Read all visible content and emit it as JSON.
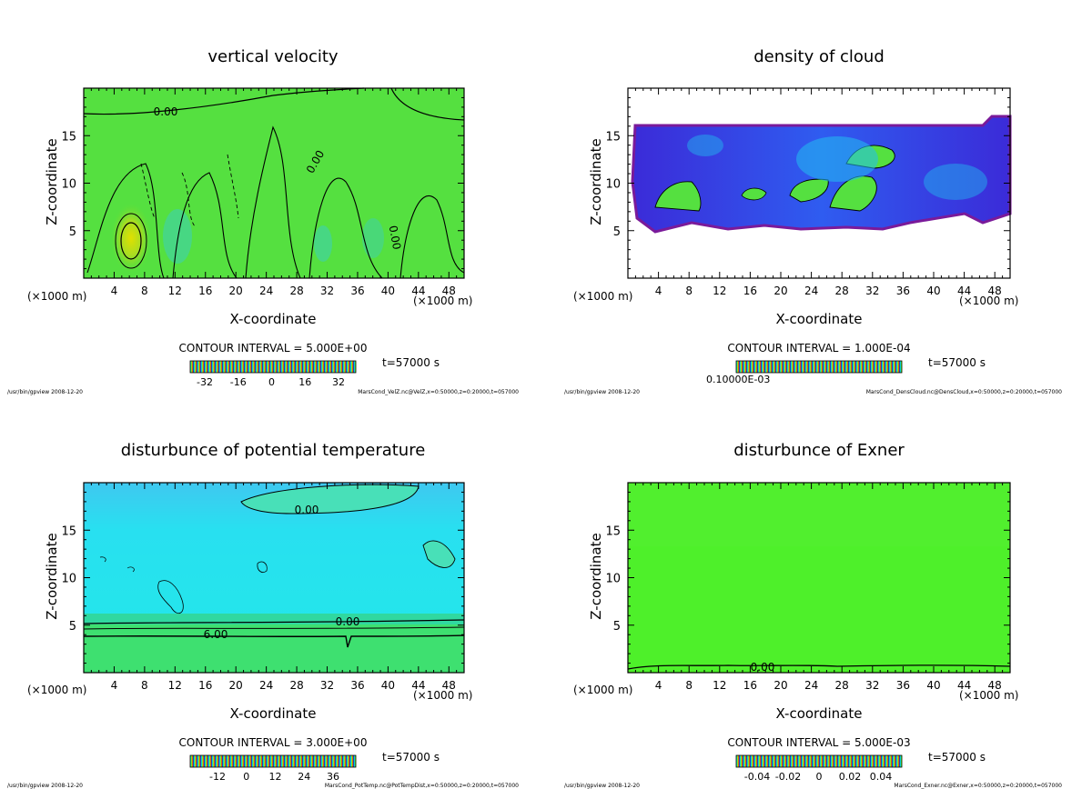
{
  "panels": [
    {
      "title": "vertical velocity",
      "xlabel": "X-coordinate",
      "ylabel": "Z-coordinate",
      "x_unit_left": "(×1000 m)",
      "x_unit_right": "(×1000 m)",
      "contour_text": "CONTOUR INTERVAL = 5.000E+00",
      "time_text": "t=57000 s",
      "footer_left": "/usr/bin/gpview  2008-12-20",
      "footer_right": "MarsCond_VelZ.nc@VelZ,x=0:50000,z=0:20000,t=057000",
      "colorbar_ticks": [
        "-32",
        "-16",
        "0",
        "16",
        "32"
      ],
      "contour_labels": [
        "0.00",
        "0.00",
        "0.00"
      ]
    },
    {
      "title": "density of cloud",
      "xlabel": "X-coordinate",
      "ylabel": "Z-coordinate",
      "x_unit_left": "(×1000 m)",
      "x_unit_right": "(×1000 m)",
      "contour_text": "CONTOUR INTERVAL = 1.000E-04",
      "time_text": "t=57000 s",
      "footer_left": "/usr/bin/gpview  2008-12-20",
      "footer_right": "MarsCond_DensCloud.nc@DensCloud,x=0:50000,z=0:20000,t=057000",
      "colorbar_ticks": [
        "0.10000E-03"
      ],
      "contour_labels": []
    },
    {
      "title": "disturbunce of potential temperature",
      "xlabel": "X-coordinate",
      "ylabel": "Z-coordinate",
      "x_unit_left": "(×1000 m)",
      "x_unit_right": "(×1000 m)",
      "contour_text": "CONTOUR INTERVAL = 3.000E+00",
      "time_text": "t=57000 s",
      "footer_left": "/usr/bin/gpview  2008-12-20",
      "footer_right": "MarsCond_PotTemp.nc@PotTempDist,x=0:50000,z=0:20000,t=057000",
      "colorbar_ticks": [
        "-12",
        "0",
        "12",
        "24",
        "36"
      ],
      "contour_labels": [
        "0.00",
        "0.00",
        "6.00"
      ]
    },
    {
      "title": "disturbunce of Exner",
      "xlabel": "X-coordinate",
      "ylabel": "Z-coordinate",
      "x_unit_left": "(×1000 m)",
      "x_unit_right": "(×1000 m)",
      "contour_text": "CONTOUR INTERVAL = 5.000E-03",
      "time_text": "t=57000 s",
      "footer_left": "/usr/bin/gpview  2008-12-20",
      "footer_right": "MarsCond_Exner.nc@Exner,x=0:50000,z=0:20000,t=057000",
      "colorbar_ticks": [
        "-0.04",
        "-0.02",
        "0",
        "0.02",
        "0.04"
      ],
      "contour_labels": [
        "0.00"
      ]
    }
  ],
  "chart_data": [
    {
      "type": "heatmap",
      "title": "vertical velocity",
      "xlabel": "X-coordinate",
      "ylabel": "Z-coordinate",
      "xlim": [
        0,
        50
      ],
      "ylim": [
        0,
        20
      ],
      "xticks": [
        4,
        8,
        12,
        16,
        20,
        24,
        28,
        32,
        36,
        40,
        44,
        48
      ],
      "yticks": [
        5,
        10,
        15
      ],
      "colorbar": [
        -32,
        -16,
        0,
        16,
        32
      ],
      "contour_interval": 5.0
    },
    {
      "type": "heatmap",
      "title": "density of cloud",
      "xlabel": "X-coordinate",
      "ylabel": "Z-coordinate",
      "xlim": [
        0,
        50
      ],
      "ylim": [
        0,
        20
      ],
      "xticks": [
        4,
        8,
        12,
        16,
        20,
        24,
        28,
        32,
        36,
        40,
        44,
        48
      ],
      "yticks": [
        5,
        10,
        15
      ],
      "contour_interval": 0.0001
    },
    {
      "type": "heatmap",
      "title": "disturbunce of potential temperature",
      "xlabel": "X-coordinate",
      "ylabel": "Z-coordinate",
      "xlim": [
        0,
        50
      ],
      "ylim": [
        0,
        20
      ],
      "xticks": [
        4,
        8,
        12,
        16,
        20,
        24,
        28,
        32,
        36,
        40,
        44,
        48
      ],
      "yticks": [
        5,
        10,
        15
      ],
      "colorbar": [
        -12,
        0,
        12,
        24,
        36
      ],
      "contour_interval": 3.0
    },
    {
      "type": "heatmap",
      "title": "disturbunce of Exner",
      "xlabel": "X-coordinate",
      "ylabel": "Z-coordinate",
      "xlim": [
        0,
        50
      ],
      "ylim": [
        0,
        20
      ],
      "xticks": [
        4,
        8,
        12,
        16,
        20,
        24,
        28,
        32,
        36,
        40,
        44,
        48
      ],
      "yticks": [
        5,
        10,
        15
      ],
      "colorbar": [
        -0.04,
        -0.02,
        0,
        0.02,
        0.04
      ],
      "contour_interval": 0.005
    }
  ]
}
